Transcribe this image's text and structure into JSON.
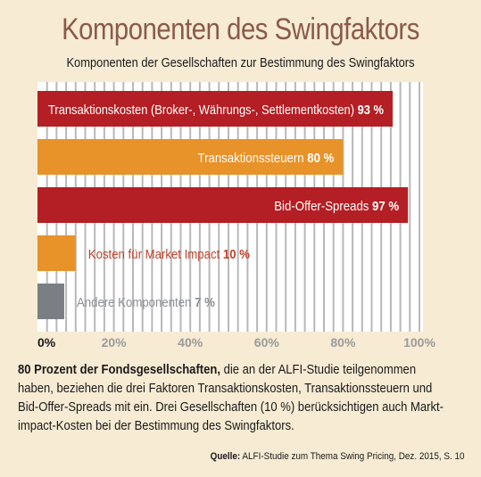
{
  "title": "Komponenten des Swingfaktors",
  "subtitle": "Komponenten der Gesellschaften zur Bestimmung des Swingfaktors",
  "colors": {
    "red": "#b31f24",
    "orange": "#e8922a",
    "gray": "#7a7f85",
    "background": "#f7ebd4",
    "grid": "#b8b8b8",
    "title": "#8a5a4a"
  },
  "chart_data": {
    "type": "bar",
    "orientation": "horizontal",
    "categories": [
      "Transaktionskosten (Broker-, Währungs-, Settlementkosten)",
      "Transaktionssteuern",
      "Bid-Offer-Spreads",
      "Kosten für Market Impact",
      "Andere Komponenten"
    ],
    "values": [
      93,
      80,
      97,
      10,
      7
    ],
    "value_labels": [
      "93 %",
      "80 %",
      "97 %",
      "10 %",
      "7 %"
    ],
    "bar_colors": [
      "#b31f24",
      "#e8922a",
      "#b31f24",
      "#e8922a",
      "#7a7f85"
    ],
    "xlim": [
      0,
      100
    ],
    "x_ticks": [
      "0%",
      "20%",
      "40%",
      "60%",
      "80%",
      "100%"
    ],
    "grid": true
  },
  "body": {
    "lead": "80 Prozent der Fondsgesellschaften,",
    "line1_rest": " die an der ALFI-Studie teilgenommen",
    "line2": "haben, beziehen die drei Faktoren Transaktionskosten, Transaktionssteuern und",
    "line3": "Bid-Offer-Spreads mit ein. Drei Gesellschaften (10 %) berücksichtigen auch Markt-",
    "line4": "impact-Kosten bei der Bestimmung des Swingfaktors."
  },
  "source": {
    "label": "Quelle:",
    "text": " ALFI-Studie zum Thema Swing Pricing, Dez. 2015, S. 10"
  }
}
